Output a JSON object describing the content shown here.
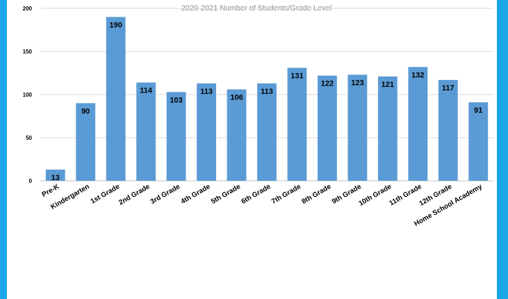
{
  "chart_data": {
    "type": "bar",
    "title": "2020-2021 Number of Students/Grade Level",
    "categories": [
      "Pre-K",
      "Kindergarten",
      "1st Grade",
      "2nd Grade",
      "3rd Grade",
      "4th Grade",
      "5th Grade",
      "6th Grade",
      "7th Grade",
      "8th Grade",
      "9th Grade",
      "10th Grade",
      "11th Grade",
      "12th Grade",
      "Home School Academy"
    ],
    "values": [
      13,
      90,
      190,
      114,
      103,
      113,
      106,
      113,
      131,
      122,
      123,
      121,
      132,
      117,
      91
    ],
    "ylim": [
      0,
      200
    ],
    "yticks": [
      0,
      50,
      100,
      150,
      200
    ],
    "grid": true,
    "colors": {
      "bar": "#5b9bd5",
      "grid": "#d9d9d9",
      "background": "#ffffff",
      "frame": "#1aa7e8"
    }
  }
}
